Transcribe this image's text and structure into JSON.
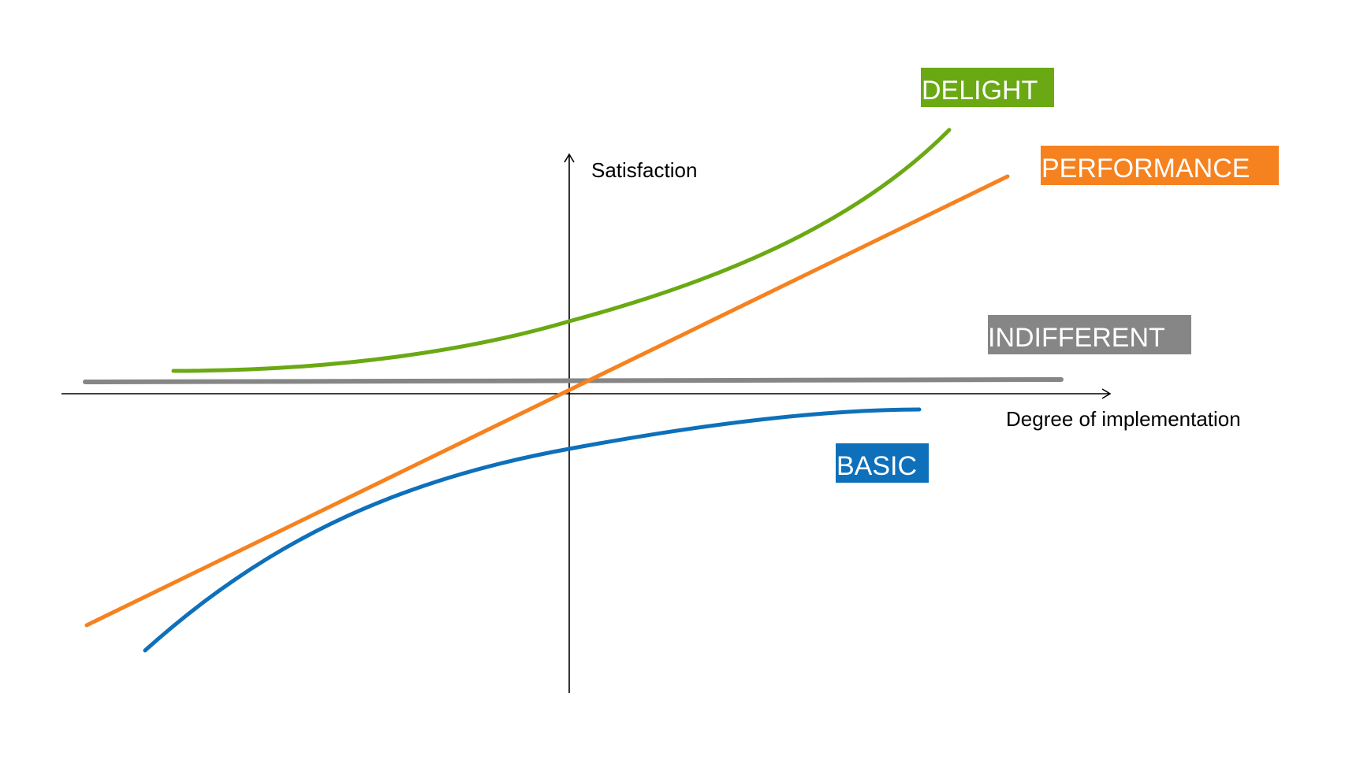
{
  "diagram": {
    "y_axis_label": "Satisfaction",
    "x_axis_label": "Degree of implementation",
    "curves": [
      {
        "key": "delight",
        "label": "DELIGHT",
        "color": "#6aa913"
      },
      {
        "key": "performance",
        "label": "PERFORMANCE",
        "color": "#f5821f"
      },
      {
        "key": "indifferent",
        "label": "INDIFFERENT",
        "color": "#868686"
      },
      {
        "key": "basic",
        "label": "BASIC",
        "color": "#0e70ba"
      }
    ]
  }
}
